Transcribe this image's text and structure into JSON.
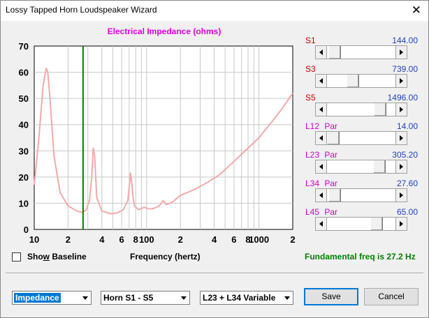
{
  "window": {
    "title": "Lossy Tapped Horn Loudspeaker Wizard",
    "close_glyph": "✕"
  },
  "chart_data": {
    "type": "line",
    "title": "Electrical Impedance (ohms)",
    "xlabel": "Frequency (hertz)",
    "ylabel": "",
    "xscale": "log",
    "xlim": [
      10,
      2000
    ],
    "ylim": [
      0,
      70
    ],
    "yticks": [
      "0",
      "10",
      "20",
      "30",
      "40",
      "50",
      "60",
      "70"
    ],
    "xticks": [
      {
        "value": 10,
        "label": "10"
      },
      {
        "value": 20,
        "label": "2"
      },
      {
        "value": 40,
        "label": "4"
      },
      {
        "value": 60,
        "label": "6"
      },
      {
        "value": 80,
        "label": "8"
      },
      {
        "value": 100,
        "label": "100"
      },
      {
        "value": 200,
        "label": "2"
      },
      {
        "value": 400,
        "label": "4"
      },
      {
        "value": 600,
        "label": "6"
      },
      {
        "value": 800,
        "label": "8"
      },
      {
        "value": 1000,
        "label": "1000"
      },
      {
        "value": 2000,
        "label": "2"
      }
    ],
    "grid": true,
    "marker_frequency": 27.2,
    "colors": {
      "curve": "#f4a9a9",
      "marker": "#008000",
      "grid": "#c8c8c8",
      "title": "#e000e0"
    },
    "series": [
      {
        "values_x": [
          10,
          11,
          12,
          12.8,
          13.2,
          13.8,
          15,
          17,
          20,
          24,
          27,
          29,
          31,
          32.5,
          33.5,
          34.5,
          36,
          40,
          48,
          55,
          62,
          68,
          72,
          74,
          76,
          78,
          85,
          95,
          105,
          115,
          130,
          140,
          150,
          170,
          200,
          260,
          350,
          450,
          600,
          800,
          1000,
          1300,
          1600,
          2000
        ],
        "values_y": [
          17,
          35,
          55,
          61.5,
          60,
          50,
          28,
          14,
          9,
          7,
          6.5,
          7.5,
          11,
          20,
          31,
          28,
          12,
          7,
          6,
          6.3,
          7.5,
          11,
          21.5,
          17,
          12,
          9,
          7.5,
          8.5,
          7.8,
          8,
          9,
          11,
          9.5,
          10.5,
          13,
          15,
          18,
          21,
          26,
          31,
          35,
          41,
          46,
          52
        ]
      }
    ]
  },
  "sliders": [
    {
      "label": "S1",
      "type": "",
      "value": "144.00",
      "fraction": 0.02
    },
    {
      "label": "S3",
      "type": "",
      "value": "739.00",
      "fraction": 0.35
    },
    {
      "label": "S5",
      "type": "",
      "value": "1496.00",
      "fraction": 0.84
    },
    {
      "label": "L12",
      "type": "Par",
      "value": "14.00",
      "fraction": 0.0
    },
    {
      "label": "L23",
      "type": "Par",
      "value": "305.20",
      "fraction": 0.83
    },
    {
      "label": "L34",
      "type": "Par",
      "value": "27.60",
      "fraction": 0.02
    },
    {
      "label": "L45",
      "type": "Par",
      "value": "65.00",
      "fraction": 0.77
    }
  ],
  "colors": {
    "slider_label": "#cc0000",
    "slider_label_par": "#cc00cc",
    "slider_value": "#1f3fbf"
  },
  "show_baseline": {
    "label": "Show Baseline",
    "checked": false
  },
  "fundamental": "Fundamental freq is 27.2 Hz",
  "combos": {
    "mode": "Impedance",
    "horn": "Horn S1 - S5",
    "variable": "L23 + L34 Variable"
  },
  "buttons": {
    "save": "Save",
    "cancel": "Cancel"
  }
}
